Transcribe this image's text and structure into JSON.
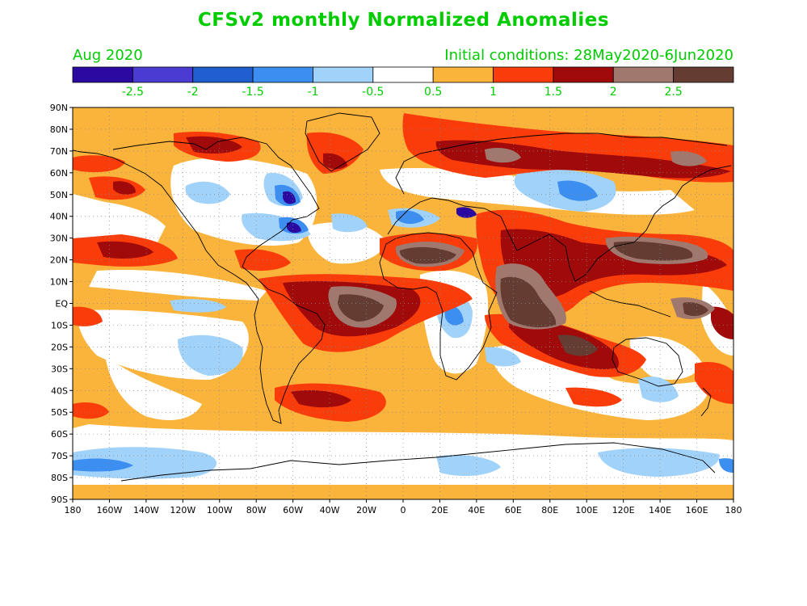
{
  "title": "CFSv2 monthly Normalized Anomalies",
  "month_label": "Aug 2020",
  "init_label": "Initial conditions: 28May2020-6Jun2020",
  "colorbar": {
    "colors": [
      "#2a0aa0",
      "#4a3cd2",
      "#1f5fd0",
      "#3c8ff0",
      "#a0d2fa",
      "#ffffff",
      "#fab43c",
      "#fa3c0a",
      "#a00a0a",
      "#a0786e",
      "#643c32"
    ],
    "tick_labels": [
      "-2.5",
      "-2",
      "-1.5",
      "-1",
      "-0.5",
      "0.5",
      "1",
      "1.5",
      "2",
      "2.5"
    ]
  },
  "map": {
    "lat_labels": [
      "90N",
      "80N",
      "70N",
      "60N",
      "50N",
      "40N",
      "30N",
      "20N",
      "10N",
      "EQ",
      "10S",
      "20S",
      "30S",
      "40S",
      "50S",
      "60S",
      "70S",
      "80S",
      "90S"
    ],
    "lon_labels": [
      "180",
      "160W",
      "140W",
      "120W",
      "100W",
      "80W",
      "60W",
      "40W",
      "20W",
      "0",
      "20E",
      "40E",
      "60E",
      "80E",
      "100E",
      "120E",
      "140E",
      "160E",
      "180"
    ]
  }
}
